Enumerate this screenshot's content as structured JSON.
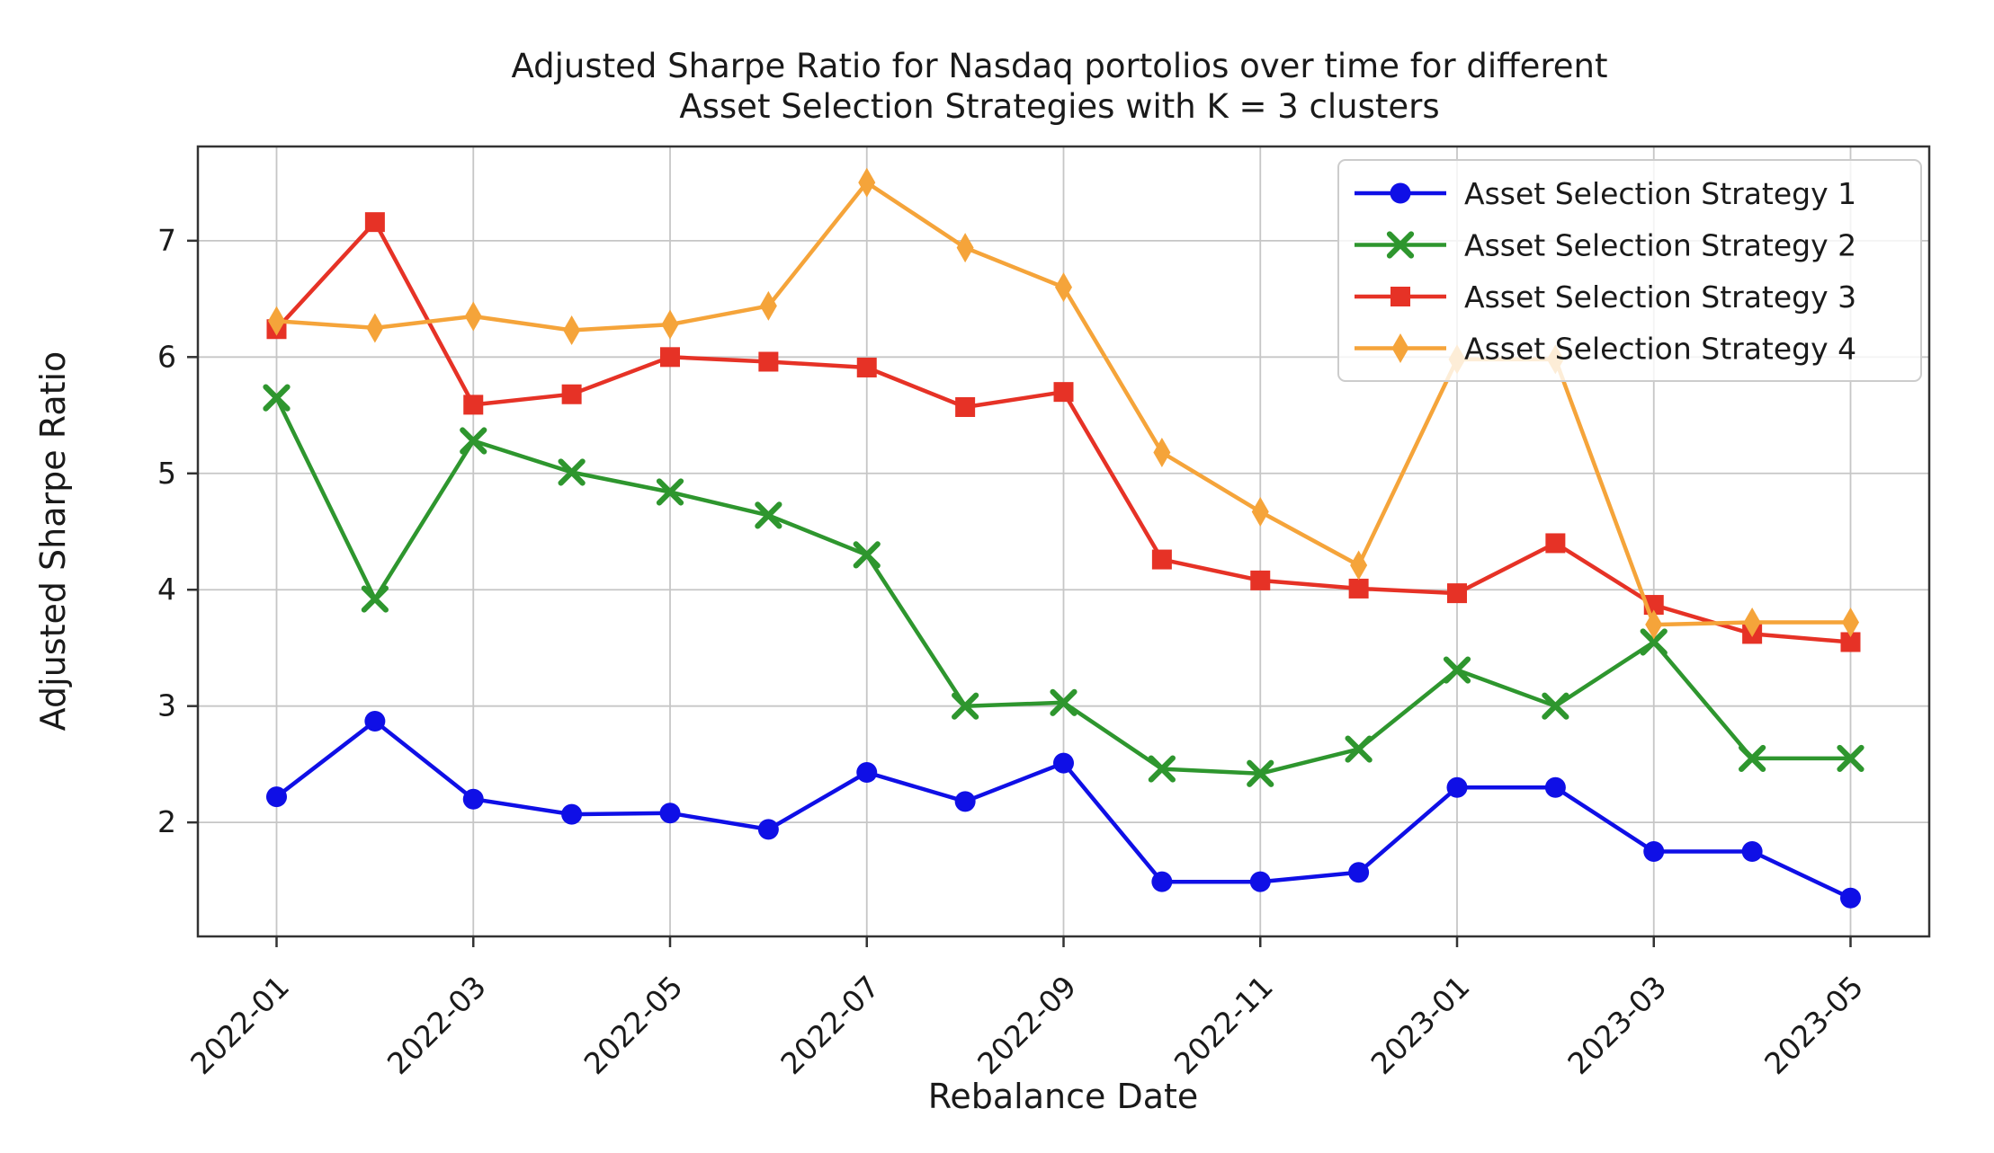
{
  "chart_data": {
    "type": "line",
    "title_lines": [
      "Adjusted Sharpe Ratio for Nasdaq portolios over time for different",
      "Asset Selection Strategies with K = 3 clusters"
    ],
    "xlabel": "Rebalance Date",
    "ylabel": "Adjusted Sharpe Ratio",
    "x": [
      "2022-01",
      "2022-02",
      "2022-03",
      "2022-04",
      "2022-05",
      "2022-06",
      "2022-07",
      "2022-08",
      "2022-09",
      "2022-10",
      "2022-11",
      "2022-12",
      "2023-01",
      "2023-02",
      "2023-03",
      "2023-04",
      "2023-05"
    ],
    "x_tick_labels": [
      "2022-01",
      "2022-03",
      "2022-05",
      "2022-07",
      "2022-09",
      "2022-11",
      "2023-01",
      "2023-03",
      "2023-05"
    ],
    "y_ticks": [
      2,
      3,
      4,
      5,
      6,
      7
    ],
    "ylim": [
      1.02,
      7.81
    ],
    "xlim_index": [
      -0.8,
      16.8
    ],
    "grid": true,
    "legend": {
      "position": "upper right",
      "frame_alpha": 0.8
    },
    "series": [
      {
        "name": "Asset Selection Strategy 1",
        "color": "#0f0fe6",
        "marker": "circle",
        "values": [
          2.22,
          2.87,
          2.2,
          2.07,
          2.08,
          1.94,
          2.43,
          2.18,
          2.51,
          1.49,
          1.49,
          1.57,
          2.3,
          2.3,
          1.75,
          1.75,
          1.35
        ]
      },
      {
        "name": "Asset Selection Strategy 2",
        "color": "#2e962e",
        "marker": "x",
        "values": [
          5.65,
          3.92,
          5.28,
          5.01,
          4.84,
          4.64,
          4.3,
          3.0,
          3.03,
          2.46,
          2.42,
          2.63,
          3.31,
          3.0,
          3.55,
          2.55,
          2.55
        ]
      },
      {
        "name": "Asset Selection Strategy 3",
        "color": "#e63226",
        "marker": "square",
        "values": [
          6.24,
          7.16,
          5.59,
          5.68,
          6.0,
          5.96,
          5.91,
          5.57,
          5.7,
          4.26,
          4.08,
          4.01,
          3.97,
          4.4,
          3.87,
          3.62,
          3.55
        ]
      },
      {
        "name": "Asset Selection Strategy 4",
        "color": "#f5a43a",
        "marker": "thin-diamond",
        "values": [
          6.31,
          6.25,
          6.35,
          6.23,
          6.28,
          6.44,
          7.5,
          6.94,
          6.6,
          5.18,
          4.67,
          4.21,
          5.98,
          5.98,
          3.7,
          3.72,
          3.72
        ]
      }
    ]
  },
  "axis_style": {
    "grid_color": "#c6c6c6",
    "spine_color": "#333333",
    "tick_color": "#333333",
    "text_color": "#1a1a1a",
    "legend_border": "#cccccc",
    "background": "#ffffff"
  }
}
